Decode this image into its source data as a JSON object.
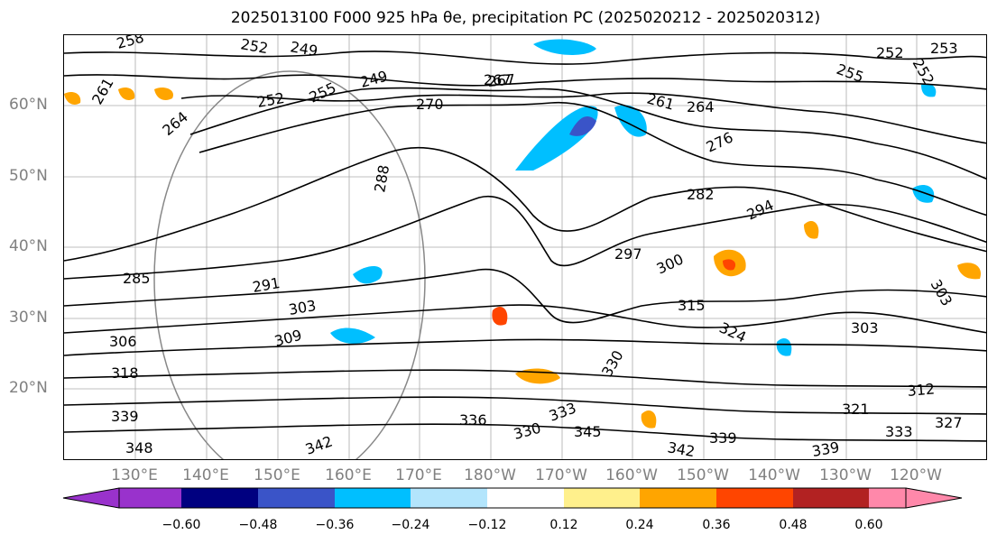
{
  "title": "2025013100 F000 925 hPa θe, precipitation PC (2025020212 - 2025020312)",
  "map": {
    "lat_labels": [
      "60°N",
      "50°N",
      "40°N",
      "30°N",
      "20°N"
    ],
    "lon_labels": [
      "130°E",
      "140°E",
      "150°E",
      "160°E",
      "170°E",
      "180°W",
      "170°W",
      "160°W",
      "150°W",
      "140°W",
      "130°W",
      "120°W"
    ],
    "contour_labels": [
      "258",
      "252",
      "249",
      "261",
      "252",
      "255",
      "249",
      "270",
      "267",
      "267",
      "264",
      "261",
      "264",
      "276",
      "282",
      "294",
      "297",
      "300",
      "291",
      "303",
      "309",
      "285",
      "306",
      "318",
      "339",
      "348",
      "342",
      "336",
      "330",
      "333",
      "345",
      "342",
      "339",
      "339",
      "333",
      "327",
      "321",
      "312",
      "303",
      "303",
      "315",
      "324",
      "330",
      "288",
      "255",
      "252",
      "253",
      "252"
    ]
  },
  "colorbar": {
    "colors": [
      "#9932cc",
      "#000080",
      "#3a54c8",
      "#00bfff",
      "#b3e5fc",
      "#ffffff",
      "#fff08c",
      "#ffa500",
      "#ff4500",
      "#b22222",
      "#ff88aa"
    ],
    "extend_low_color": "#9932cc",
    "extend_high_color": "#ff88aa",
    "tick_labels": [
      "−0.60",
      "−0.48",
      "−0.36",
      "−0.24",
      "−0.12",
      "0.12",
      "0.24",
      "0.36",
      "0.48",
      "0.60"
    ]
  }
}
